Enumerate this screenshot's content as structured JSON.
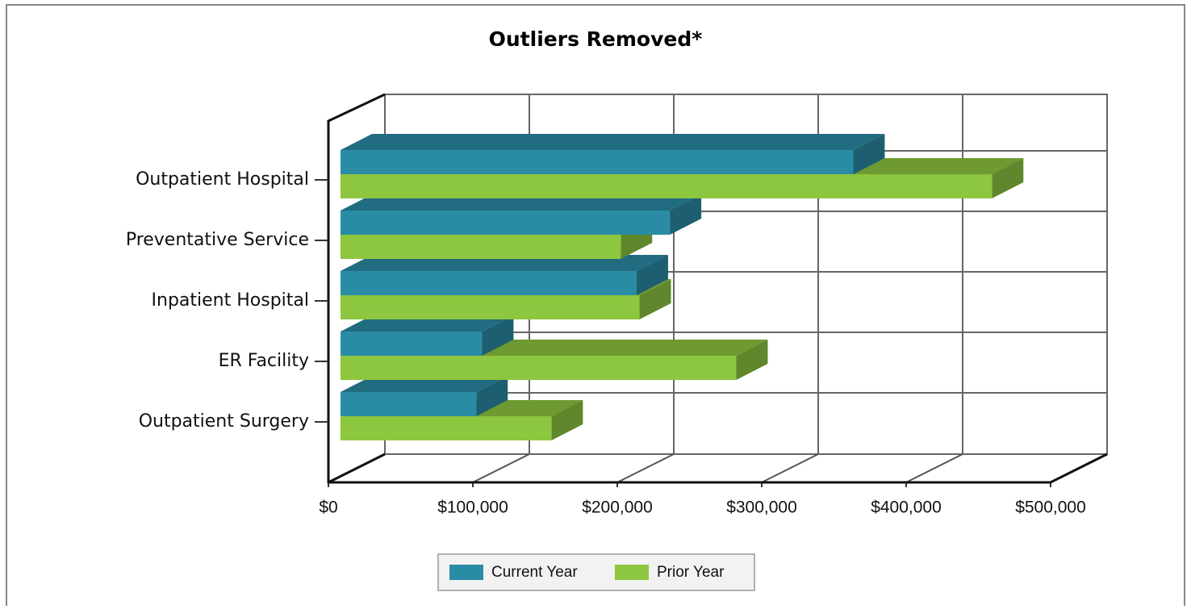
{
  "chart_data": {
    "type": "bar3d_horizontal",
    "title": "Outliers Removed*",
    "categories": [
      "Outpatient Hospital",
      "Preventative Service",
      "Inpatient Hospital",
      "ER Facility",
      "Outpatient Surgery"
    ],
    "series": [
      {
        "name": "Current Year",
        "color": "#2a8ba5",
        "values": [
          355000,
          228000,
          205000,
          98000,
          94000
        ]
      },
      {
        "name": "Prior Year",
        "color": "#8dc63f",
        "values": [
          451000,
          194000,
          207000,
          274000,
          146000
        ]
      }
    ],
    "xlim": [
      0,
      500000
    ],
    "xticks": [
      {
        "value": 0,
        "label": "$0"
      },
      {
        "value": 100000,
        "label": "$100,000"
      },
      {
        "value": 200000,
        "label": "$200,000"
      },
      {
        "value": 300000,
        "label": "$300,000"
      },
      {
        "value": 400000,
        "label": "$400,000"
      },
      {
        "value": 500000,
        "label": "$500,000"
      }
    ],
    "grid": true,
    "legend": "bottom"
  }
}
